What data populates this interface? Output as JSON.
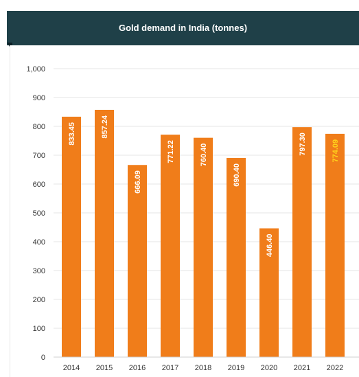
{
  "header": {
    "title": "Gold demand in India (tonnes)"
  },
  "chart_data": {
    "type": "bar",
    "title": "Gold demand in India (tonnes)",
    "categories": [
      "2014",
      "2015",
      "2016",
      "2017",
      "2018",
      "2019",
      "2020",
      "2021",
      "2022"
    ],
    "values": [
      833.45,
      857.24,
      666.09,
      771.22,
      760.4,
      690.4,
      446.4,
      797.3,
      774.09
    ],
    "value_labels": [
      "833.45",
      "857.24",
      "666.09",
      "771.22",
      "760.40",
      "690.40",
      "446.40",
      "797.30",
      "774.09"
    ],
    "yticks": [
      "0",
      "100",
      "200",
      "300",
      "400",
      "500",
      "600",
      "700",
      "800",
      "900",
      "1,000"
    ],
    "ylim": [
      0,
      1000
    ],
    "grid": true,
    "legend": "none",
    "colors": {
      "bar": "#f07d1a",
      "label": "#ffffff",
      "label_highlight": "#ffd21a",
      "grid": "#e4e4e4",
      "axis_text": "#333333",
      "header_bg": "#1f4048"
    }
  }
}
